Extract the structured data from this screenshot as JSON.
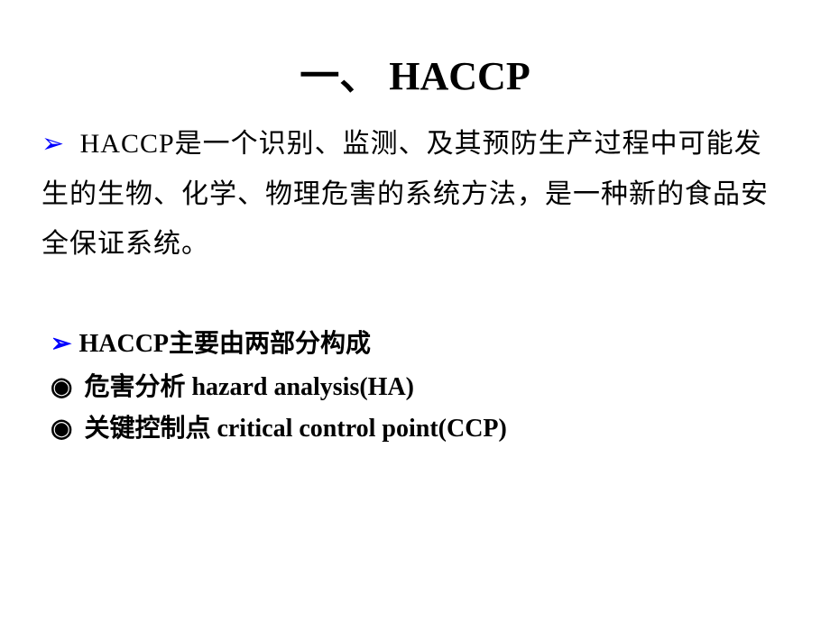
{
  "title": {
    "text": "一、 HACCP",
    "fontsize": 44,
    "color": "#000000"
  },
  "paragraph1": {
    "bullet_color": "#0000ff",
    "bullet_symbol": "➢",
    "text": " HACCP是一个识别、监测、及其预防生产过程中可能发生的生物、化学、物理危害的系统方法，是一种新的食品安全保证系统。",
    "fontsize": 30,
    "color": "#000000"
  },
  "heading2": {
    "bullet_color": "#0000ff",
    "bullet_symbol": "➢",
    "text": "HACCP主要由两部分构成",
    "fontsize": 28
  },
  "bullet1": {
    "symbol": "◉",
    "text": " 危害分析 hazard analysis(HA)",
    "fontsize": 28
  },
  "bullet2": {
    "symbol": "◉",
    "text": " 关键控制点 critical control point(CCP)",
    "fontsize": 28
  },
  "background_color": "#ffffff"
}
